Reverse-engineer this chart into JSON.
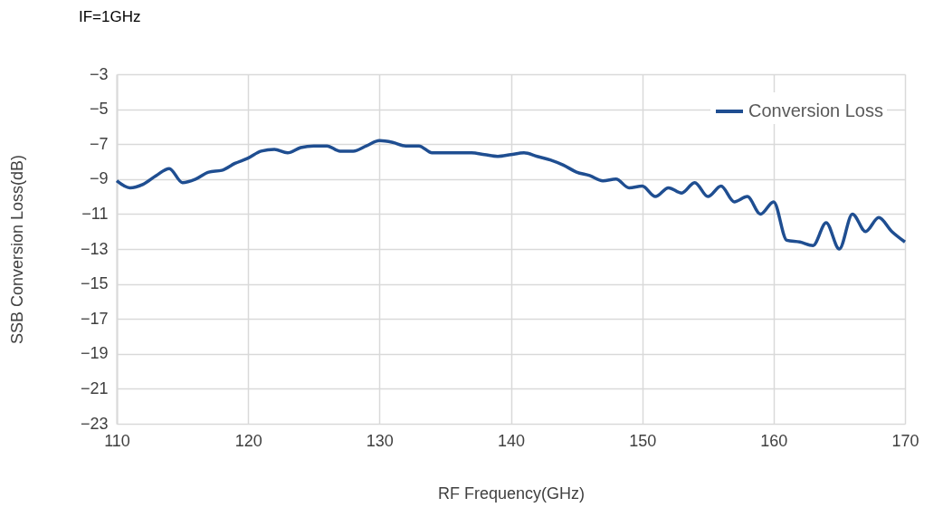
{
  "chart_data": {
    "type": "line",
    "title": "IF=1GHz",
    "xlabel": "RF Frequency(GHz)",
    "ylabel": "SSB Conversion Loss(dB)",
    "x": [
      110,
      111,
      112,
      113,
      114,
      115,
      116,
      117,
      118,
      119,
      120,
      121,
      122,
      123,
      124,
      125,
      126,
      127,
      128,
      129,
      130,
      131,
      132,
      133,
      134,
      135,
      136,
      137,
      138,
      139,
      140,
      141,
      142,
      143,
      144,
      145,
      146,
      147,
      148,
      149,
      150,
      151,
      152,
      153,
      154,
      155,
      156,
      157,
      158,
      159,
      160,
      161,
      162,
      163,
      164,
      165,
      166,
      167,
      168,
      169,
      170
    ],
    "series": [
      {
        "name": "Conversion Loss",
        "color": "#1f4e91",
        "values": [
          -9.1,
          -9.5,
          -9.3,
          -8.8,
          -8.4,
          -9.2,
          -9.0,
          -8.6,
          -8.5,
          -8.1,
          -7.8,
          -7.4,
          -7.3,
          -7.5,
          -7.2,
          -7.1,
          -7.1,
          -7.4,
          -7.4,
          -7.1,
          -6.8,
          -6.9,
          -7.1,
          -7.1,
          -7.5,
          -7.5,
          -7.5,
          -7.5,
          -7.6,
          -7.7,
          -7.6,
          -7.5,
          -7.7,
          -7.9,
          -8.2,
          -8.6,
          -8.8,
          -9.1,
          -9.0,
          -9.5,
          -9.4,
          -10.0,
          -9.5,
          -9.8,
          -9.2,
          -10.0,
          -9.4,
          -10.3,
          -10.0,
          -11.0,
          -10.3,
          -12.5,
          -12.6,
          -12.8,
          -11.5,
          -13.0,
          -11.0,
          -12.0,
          -11.2,
          -12.0,
          -12.6
        ]
      }
    ],
    "xlim": [
      110,
      170
    ],
    "xticks": [
      110,
      120,
      130,
      140,
      150,
      160,
      170
    ],
    "ylim": [
      -23,
      -3
    ],
    "yticks": [
      -23,
      -21,
      -19,
      -17,
      -15,
      -13,
      -11,
      -9,
      -7,
      -5,
      -3
    ],
    "grid": true,
    "legend": "top right",
    "marker": "none",
    "line_style": "solid"
  }
}
